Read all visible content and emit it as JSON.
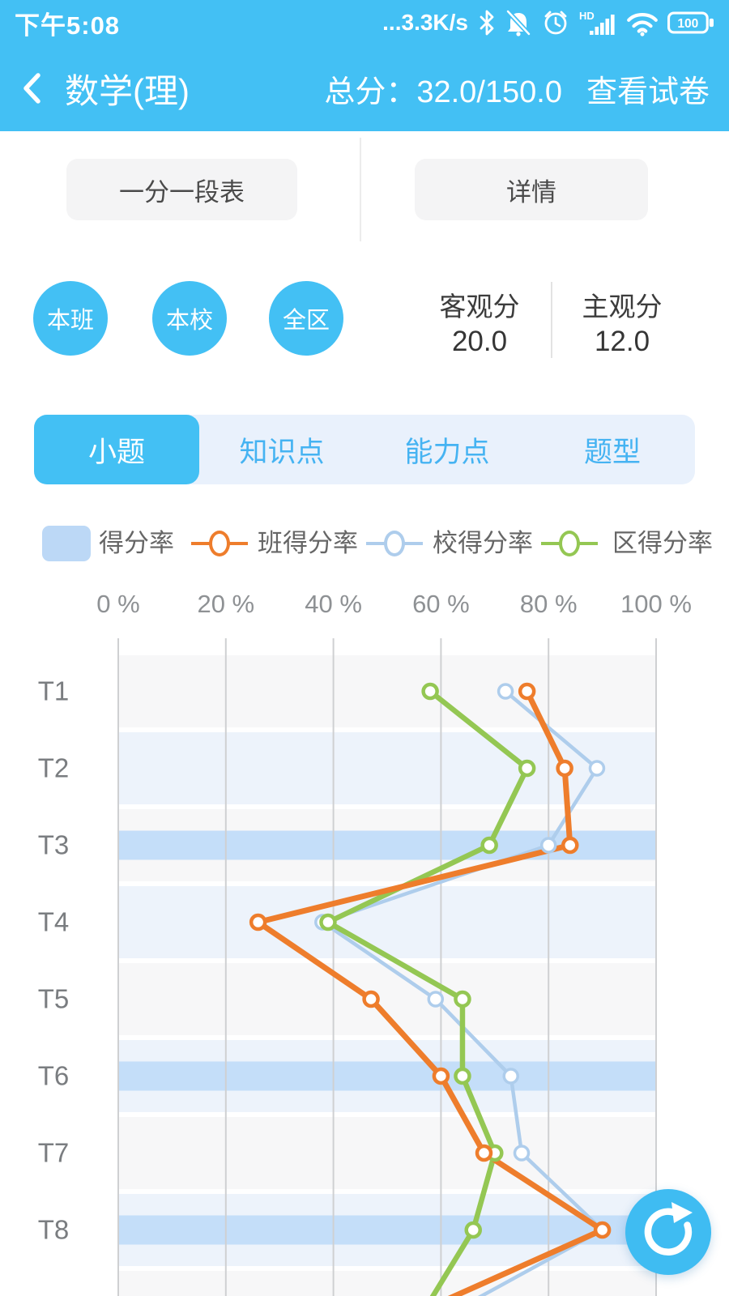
{
  "status_bar": {
    "time": "下午5:08",
    "network_speed": "...3.3K/s",
    "hd_label": "HD",
    "battery_level": "100"
  },
  "nav_bar": {
    "title": "数学(理)",
    "total_score_label": "总分：32.0/150.0",
    "view_paper_label": "查看试卷"
  },
  "actions": {
    "score_table_label": "一分一段表",
    "details_label": "详情"
  },
  "scope_buttons": [
    {
      "label": "本班"
    },
    {
      "label": "本校"
    },
    {
      "label": "全区"
    }
  ],
  "score_summary": {
    "objective_label": "客观分",
    "objective_value": "20.0",
    "subjective_label": "主观分",
    "subjective_value": "12.0"
  },
  "tabs": [
    {
      "label": "小题",
      "selected": true
    },
    {
      "label": "知识点",
      "selected": false
    },
    {
      "label": "能力点",
      "selected": false
    },
    {
      "label": "题型",
      "selected": false
    }
  ],
  "legend": [
    {
      "label": "得分率",
      "type": "bar",
      "color": "#bcd8f6"
    },
    {
      "label": "班得分率",
      "type": "line",
      "color": "#ee7d2c"
    },
    {
      "label": "校得分率",
      "type": "line",
      "color": "#aecdec"
    },
    {
      "label": "区得分率",
      "type": "line",
      "color": "#94c753"
    }
  ],
  "chart_data": {
    "type": "bar",
    "orientation": "horizontal",
    "categories": [
      "T1",
      "T2",
      "T3",
      "T4",
      "T5",
      "T6",
      "T7",
      "T8"
    ],
    "x_axis": {
      "ticks": [
        "0 %",
        "20 %",
        "40 %",
        "60 %",
        "80 %",
        "100 %"
      ],
      "min": 0,
      "max": 100,
      "unit": "%"
    },
    "grid": true,
    "legend_position": "top",
    "series": [
      {
        "name": "得分率",
        "type": "bar",
        "color": "#c4def9",
        "values": [
          0,
          0,
          100,
          0,
          0,
          100,
          0,
          100
        ]
      },
      {
        "name": "班得分率",
        "type": "line",
        "color": "#ee7d2c",
        "values": [
          76,
          83,
          84,
          26,
          47,
          60,
          68,
          90
        ]
      },
      {
        "name": "校得分率",
        "type": "line",
        "color": "#aecdec",
        "values": [
          72,
          89,
          80,
          38,
          59,
          73,
          75,
          90
        ]
      },
      {
        "name": "区得分率",
        "type": "line",
        "color": "#94c753",
        "values": [
          58,
          76,
          69,
          39,
          64,
          64,
          70,
          66
        ]
      }
    ],
    "offscreen_next_values": {
      "班得分率": 57,
      "校得分率": 63,
      "区得分率": 57
    },
    "row_stripe_colors": [
      "#f7f7f8",
      "#edf3fb"
    ],
    "gridline_color": "#cfd0d2"
  },
  "fab": {
    "icon": "refresh"
  },
  "colors": {
    "accent": "#43c0f4",
    "fab": "#3fbcf2"
  }
}
